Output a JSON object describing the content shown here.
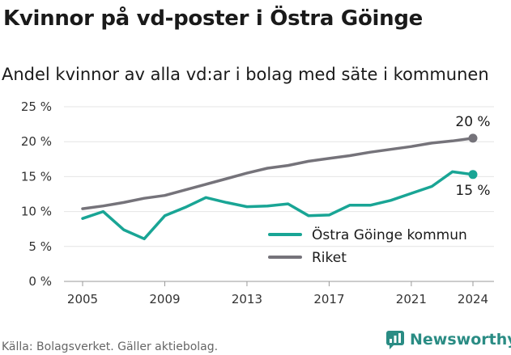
{
  "title": "Kvinnor på vd-poster i Östra Göinge",
  "subtitle": "Andel kvinnor av alla vd:ar i bolag med säte i kommunen",
  "footer": "Källa: Bolagsverket. Gäller aktiebolag.",
  "brand": "Newsworthy",
  "colors": {
    "teal": "#19a595",
    "grey": "#75737a",
    "brand": "#2a8c84"
  },
  "chart_data": {
    "type": "line",
    "x": [
      2005,
      2006,
      2007,
      2008,
      2009,
      2010,
      2011,
      2012,
      2013,
      2014,
      2015,
      2016,
      2017,
      2018,
      2019,
      2020,
      2021,
      2022,
      2023,
      2024
    ],
    "xticks": [
      2005,
      2009,
      2013,
      2017,
      2021,
      2024
    ],
    "xtick_labels": [
      "2005",
      "2009",
      "2013",
      "2017",
      "2021",
      "2024"
    ],
    "ylim": [
      0,
      25
    ],
    "yticks": [
      0,
      5,
      10,
      15,
      20,
      25
    ],
    "ytick_labels": [
      "0 %",
      "5 %",
      "10 %",
      "15 %",
      "20 %",
      "25 %"
    ],
    "grid": "horizontal",
    "legend_position": "bottom-right",
    "series": [
      {
        "name": "Östra Göinge kommun",
        "color": "#19a595",
        "values": [
          9.0,
          10.0,
          7.4,
          6.1,
          9.4,
          10.6,
          12.0,
          11.3,
          10.7,
          10.8,
          11.1,
          9.4,
          9.5,
          10.9,
          10.9,
          11.6,
          12.6,
          13.6,
          15.7,
          15.3
        ],
        "end_label": "15 %"
      },
      {
        "name": "Riket",
        "color": "#75737a",
        "values": [
          10.4,
          10.8,
          11.3,
          11.9,
          12.3,
          13.1,
          13.9,
          14.7,
          15.5,
          16.2,
          16.6,
          17.2,
          17.6,
          18.0,
          18.5,
          18.9,
          19.3,
          19.8,
          20.1,
          20.5
        ],
        "end_label": "20 %"
      }
    ]
  }
}
